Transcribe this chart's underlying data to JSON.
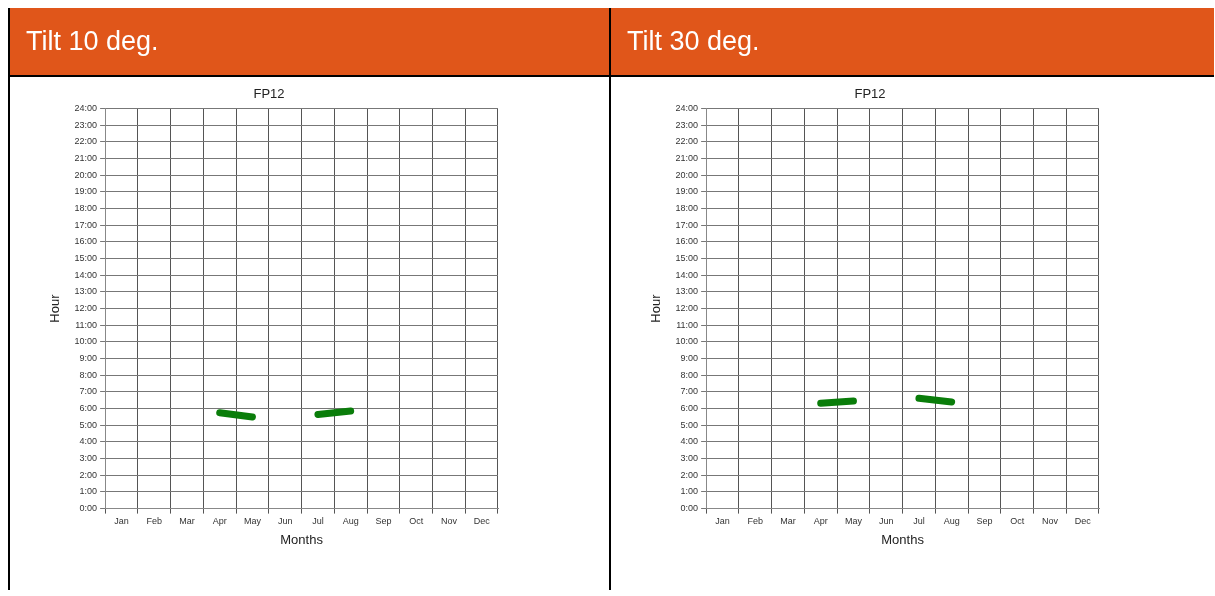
{
  "chart_data": [
    {
      "type": "line",
      "title": "FP12",
      "annotations": [
        "Tilt 10 deg."
      ],
      "xlabel": "Months",
      "ylabel": "Hour",
      "grid": true,
      "legend": false,
      "marker": "none",
      "line_style": "solid",
      "categories": [
        "Jan",
        "Feb",
        "Mar",
        "Apr",
        "May",
        "Jun",
        "Jul",
        "Aug",
        "Sep",
        "Oct",
        "Nov",
        "Dec"
      ],
      "ylim": [
        0,
        24
      ],
      "yticks": [
        {
          "value": 0,
          "label": "0:00"
        },
        {
          "value": 1,
          "label": "1:00"
        },
        {
          "value": 2,
          "label": "2:00"
        },
        {
          "value": 3,
          "label": "3:00"
        },
        {
          "value": 4,
          "label": "4:00"
        },
        {
          "value": 5,
          "label": "5:00"
        },
        {
          "value": 6,
          "label": "6:00"
        },
        {
          "value": 7,
          "label": "7:00"
        },
        {
          "value": 8,
          "label": "8:00"
        },
        {
          "value": 9,
          "label": "9:00"
        },
        {
          "value": 10,
          "label": "10:00"
        },
        {
          "value": 11,
          "label": "11:00"
        },
        {
          "value": 12,
          "label": "12:00"
        },
        {
          "value": 13,
          "label": "13:00"
        },
        {
          "value": 14,
          "label": "14:00"
        },
        {
          "value": 15,
          "label": "15:00"
        },
        {
          "value": 16,
          "label": "16:00"
        },
        {
          "value": 17,
          "label": "17:00"
        },
        {
          "value": 18,
          "label": "18:00"
        },
        {
          "value": 19,
          "label": "19:00"
        },
        {
          "value": 20,
          "label": "20:00"
        },
        {
          "value": 21,
          "label": "21:00"
        },
        {
          "value": 22,
          "label": "22:00"
        },
        {
          "value": 23,
          "label": "23:00"
        },
        {
          "value": 24,
          "label": "24:00"
        }
      ],
      "series": [
        {
          "color": "#0a7d0a",
          "values": [
            null,
            null,
            null,
            5.75,
            5.5,
            null,
            5.65,
            5.85,
            null,
            null,
            null,
            null
          ]
        }
      ]
    },
    {
      "type": "line",
      "title": "FP12",
      "annotations": [
        "Tilt 30 deg."
      ],
      "xlabel": "Months",
      "ylabel": "Hour",
      "grid": true,
      "legend": false,
      "marker": "none",
      "line_style": "solid",
      "categories": [
        "Jan",
        "Feb",
        "Mar",
        "Apr",
        "May",
        "Jun",
        "Jul",
        "Aug",
        "Sep",
        "Oct",
        "Nov",
        "Dec"
      ],
      "ylim": [
        0,
        24
      ],
      "yticks": [
        {
          "value": 0,
          "label": "0:00"
        },
        {
          "value": 1,
          "label": "1:00"
        },
        {
          "value": 2,
          "label": "2:00"
        },
        {
          "value": 3,
          "label": "3:00"
        },
        {
          "value": 4,
          "label": "4:00"
        },
        {
          "value": 5,
          "label": "5:00"
        },
        {
          "value": 6,
          "label": "6:00"
        },
        {
          "value": 7,
          "label": "7:00"
        },
        {
          "value": 8,
          "label": "8:00"
        },
        {
          "value": 9,
          "label": "9:00"
        },
        {
          "value": 10,
          "label": "10:00"
        },
        {
          "value": 11,
          "label": "11:00"
        },
        {
          "value": 12,
          "label": "12:00"
        },
        {
          "value": 13,
          "label": "13:00"
        },
        {
          "value": 14,
          "label": "14:00"
        },
        {
          "value": 15,
          "label": "15:00"
        },
        {
          "value": 16,
          "label": "16:00"
        },
        {
          "value": 17,
          "label": "17:00"
        },
        {
          "value": 18,
          "label": "18:00"
        },
        {
          "value": 19,
          "label": "19:00"
        },
        {
          "value": 20,
          "label": "20:00"
        },
        {
          "value": 21,
          "label": "21:00"
        },
        {
          "value": 22,
          "label": "22:00"
        },
        {
          "value": 23,
          "label": "23:00"
        },
        {
          "value": 24,
          "label": "24:00"
        }
      ],
      "series": [
        {
          "color": "#0a7d0a",
          "values": [
            null,
            null,
            null,
            6.32,
            6.45,
            null,
            6.62,
            6.4,
            null,
            null,
            null,
            null
          ]
        }
      ]
    }
  ]
}
